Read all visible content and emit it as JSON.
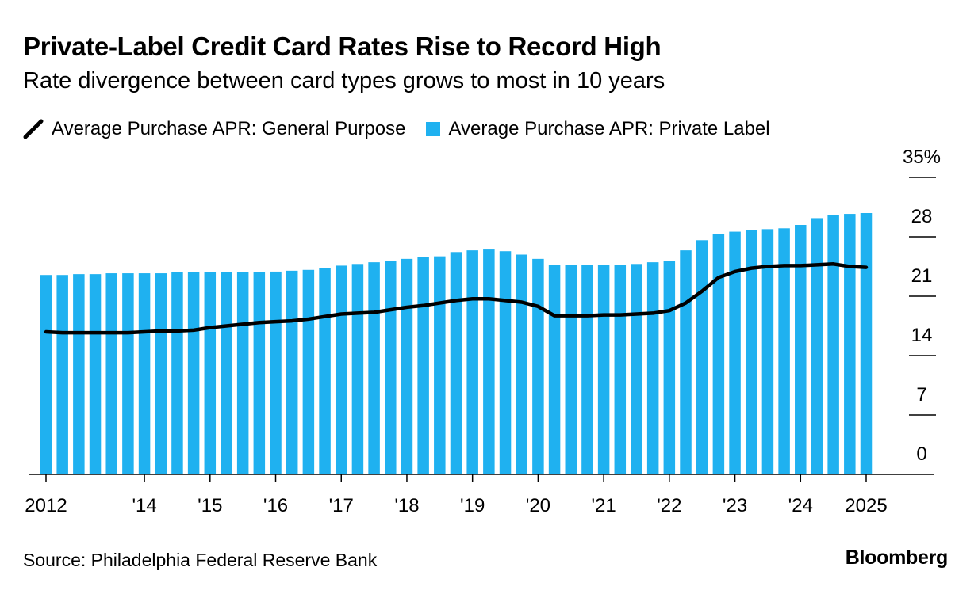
{
  "title": "Private-Label Credit Card Rates Rise to Record High",
  "subtitle": "Rate divergence between card types grows to most in 10 years",
  "source": "Source: Philadelphia Federal Reserve Bank",
  "brand": "Bloomberg",
  "colors": {
    "bar": "#1FB1F0",
    "line": "#000000",
    "axis": "#000000"
  },
  "chart_data": {
    "type": "bar",
    "x_start": "2012-Q4",
    "frequency": "quarterly",
    "ylim": [
      0,
      35
    ],
    "y_ticks": [
      0,
      7,
      14,
      21,
      28,
      35
    ],
    "y_tick_labels": [
      "0",
      "7",
      "14",
      "21",
      "28",
      "35%"
    ],
    "x_ticks": [
      {
        "label": "2012",
        "index": 0
      },
      {
        "label": "'14",
        "index": 6
      },
      {
        "label": "'15",
        "index": 10
      },
      {
        "label": "'16",
        "index": 14
      },
      {
        "label": "'17",
        "index": 18
      },
      {
        "label": "'18",
        "index": 22
      },
      {
        "label": "'19",
        "index": 26
      },
      {
        "label": "'20",
        "index": 30
      },
      {
        "label": "'21",
        "index": 34
      },
      {
        "label": "'22",
        "index": 38
      },
      {
        "label": "'23",
        "index": 42
      },
      {
        "label": "'24",
        "index": 46
      },
      {
        "label": "2025",
        "index": 50
      }
    ],
    "legend_position": "top-left",
    "grid": false,
    "series": [
      {
        "name": "Average Purchase APR: Private Label",
        "type": "bar",
        "values": [
          23.5,
          23.5,
          23.6,
          23.6,
          23.7,
          23.7,
          23.7,
          23.7,
          23.8,
          23.8,
          23.8,
          23.8,
          23.8,
          23.8,
          23.9,
          24.0,
          24.1,
          24.3,
          24.6,
          24.8,
          25.0,
          25.2,
          25.4,
          25.6,
          25.7,
          26.2,
          26.4,
          26.5,
          26.3,
          25.9,
          25.4,
          24.7,
          24.7,
          24.7,
          24.7,
          24.7,
          24.8,
          25.0,
          25.2,
          26.4,
          27.6,
          28.3,
          28.6,
          28.8,
          28.9,
          29.0,
          29.4,
          30.2,
          30.6,
          30.7,
          30.8
        ]
      },
      {
        "name": "Average Purchase APR: General Purpose",
        "type": "line",
        "values": [
          16.8,
          16.7,
          16.7,
          16.7,
          16.7,
          16.7,
          16.8,
          16.9,
          16.9,
          17.0,
          17.3,
          17.5,
          17.7,
          17.9,
          18.0,
          18.1,
          18.3,
          18.6,
          18.9,
          19.0,
          19.1,
          19.4,
          19.7,
          19.9,
          20.2,
          20.5,
          20.7,
          20.7,
          20.5,
          20.3,
          19.8,
          18.7,
          18.7,
          18.7,
          18.8,
          18.8,
          18.9,
          19.0,
          19.3,
          20.2,
          21.6,
          23.2,
          23.9,
          24.3,
          24.5,
          24.6,
          24.6,
          24.7,
          24.8,
          24.5,
          24.4
        ]
      }
    ]
  }
}
